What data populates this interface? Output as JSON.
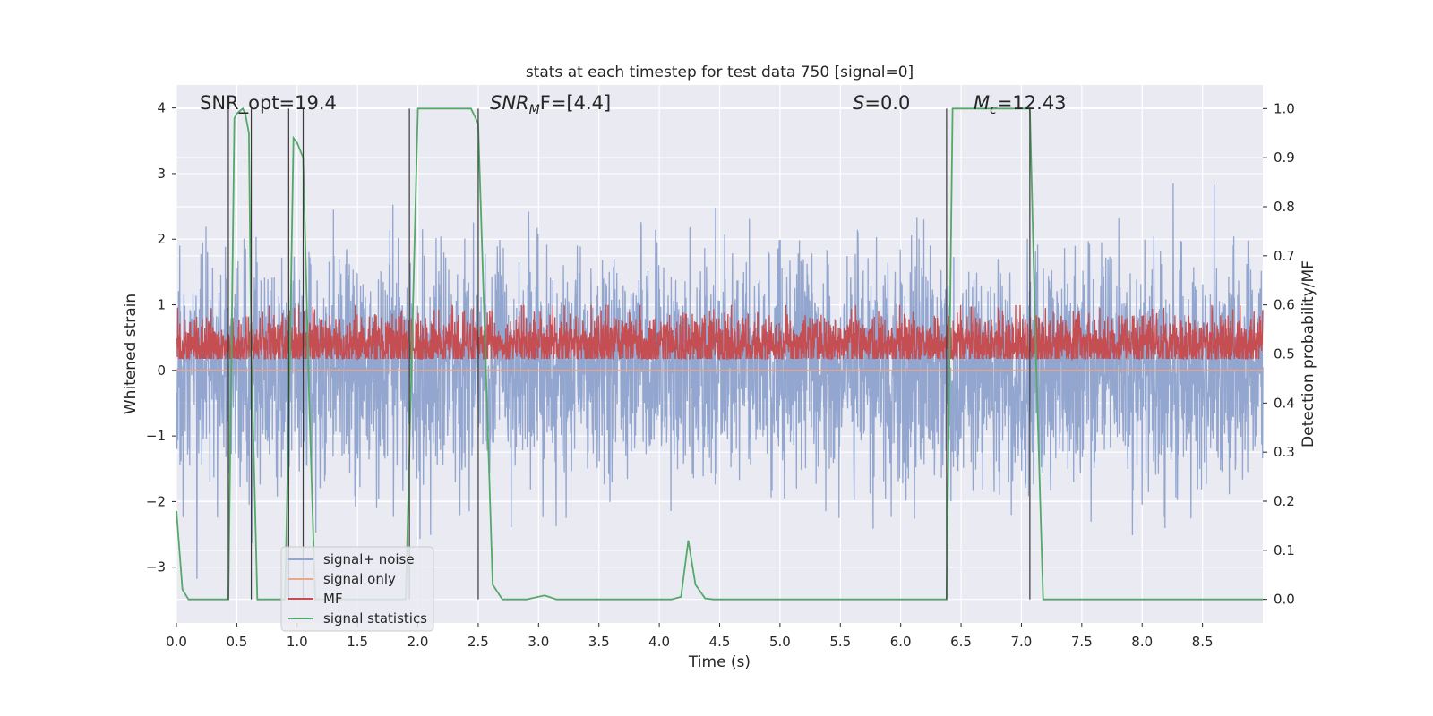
{
  "chart_data": {
    "type": "line",
    "title": "stats at each timestep for test data 750 [signal=0]",
    "xlabel": "Time (s)",
    "ylabel_left": "Whitened strain",
    "ylabel_right": "Detection probability/MF",
    "xlim": [
      0,
      9.0
    ],
    "ylim_left": [
      -3.85,
      4.35
    ],
    "ylim_right": [
      -0.048,
      1.048
    ],
    "grid": true,
    "background": "#eaeaf2",
    "x_ticks": [
      0.0,
      0.5,
      1.0,
      1.5,
      2.0,
      2.5,
      3.0,
      3.5,
      4.0,
      4.5,
      5.0,
      5.5,
      6.0,
      6.5,
      7.0,
      7.5,
      8.0,
      8.5
    ],
    "x_tick_labels": [
      "0.0",
      "0.5",
      "1.0",
      "1.5",
      "2.0",
      "2.5",
      "3.0",
      "3.5",
      "4.0",
      "4.5",
      "5.0",
      "5.5",
      "6.0",
      "6.5",
      "7.0",
      "7.5",
      "8.0",
      "8.5"
    ],
    "y_left_ticks": [
      4,
      3,
      2,
      1,
      0,
      -1,
      -2,
      -3
    ],
    "y_left_tick_labels": [
      "4",
      "3",
      "2",
      "1",
      "0",
      "−1",
      "−2",
      "−3"
    ],
    "y_right_ticks": [
      1.0,
      0.9,
      0.8,
      0.7,
      0.6,
      0.5,
      0.4,
      0.3,
      0.2,
      0.1,
      0.0
    ],
    "y_right_tick_labels": [
      "1.0",
      "0.9",
      "0.8",
      "0.7",
      "0.6",
      "0.5",
      "0.4",
      "0.3",
      "0.2",
      "0.1",
      "0.0"
    ],
    "annotations": [
      {
        "prefix": "SNR_opt=",
        "value": "19.4",
        "italic_symbol": false
      },
      {
        "symbol": "SNR",
        "sub": "M",
        "suffix": "F=[4.4]",
        "italic_symbol": true
      },
      {
        "symbol": "S",
        "suffix": "=0.0",
        "italic_symbol": true
      },
      {
        "symbol": "M",
        "sub": "c",
        "suffix": "=12.43",
        "italic_symbol": true
      }
    ],
    "series": [
      {
        "name": "signal+ noise",
        "color": "#92a6cf",
        "axis": "left",
        "kind": "noise",
        "stats": {
          "std": 0.85,
          "peak_max": 3.4,
          "peak_min": -3.55,
          "samples": 3600
        }
      },
      {
        "name": "signal only",
        "color": "#e8a88b",
        "axis": "left",
        "kind": "flat",
        "values_constant": 0.0
      },
      {
        "name": "MF",
        "color": "#c44e52",
        "axis": "right",
        "kind": "noise",
        "stats": {
          "center": 0.52,
          "std": 0.03,
          "peak_max": 0.6,
          "floor": 0.49,
          "samples": 3600
        }
      },
      {
        "name": "signal statistics",
        "color": "#55a868",
        "axis": "right",
        "kind": "line",
        "x": [
          0.0,
          0.05,
          0.1,
          0.2,
          0.3,
          0.43,
          0.48,
          0.5,
          0.55,
          0.57,
          0.6,
          0.62,
          0.67,
          0.72,
          0.8,
          0.9,
          0.94,
          0.97,
          1.0,
          1.05,
          1.1,
          1.15,
          1.2,
          1.3,
          1.5,
          1.7,
          1.9,
          1.95,
          2.0,
          2.1,
          2.3,
          2.44,
          2.5,
          2.56,
          2.62,
          2.7,
          2.9,
          3.05,
          3.15,
          3.3,
          3.6,
          3.9,
          4.1,
          4.18,
          4.24,
          4.3,
          4.38,
          4.45,
          4.6,
          5.0,
          5.5,
          6.0,
          6.3,
          6.38,
          6.43,
          6.5,
          6.8,
          7.0,
          7.07,
          7.12,
          7.18,
          7.25,
          7.5,
          8.0,
          8.5,
          9.0
        ],
        "y": [
          0.18,
          0.02,
          0.0,
          0.0,
          0.0,
          0.0,
          0.98,
          0.99,
          1.0,
          0.99,
          0.95,
          0.5,
          0.0,
          0.0,
          0.0,
          0.0,
          0.5,
          0.94,
          0.93,
          0.9,
          0.4,
          0.0,
          0.0,
          0.0,
          0.0,
          0.0,
          0.0,
          0.5,
          1.0,
          1.0,
          1.0,
          1.0,
          0.97,
          0.5,
          0.03,
          0.0,
          0.0,
          0.008,
          0.0,
          0.0,
          0.0,
          0.0,
          0.0,
          0.005,
          0.12,
          0.03,
          0.002,
          0.0,
          0.0,
          0.0,
          0.0,
          0.0,
          0.0,
          0.0,
          1.0,
          1.0,
          1.0,
          1.0,
          1.0,
          0.5,
          0.0,
          0.0,
          0.0,
          0.0,
          0.0,
          0.0
        ]
      }
    ],
    "vertical_markers_x": [
      0.43,
      0.62,
      0.93,
      1.05,
      1.93,
      2.5,
      6.38,
      7.07
    ],
    "legend": {
      "placement": "lower-left",
      "entries": [
        "signal+ noise",
        "signal only",
        "MF",
        "signal statistics"
      ]
    }
  }
}
